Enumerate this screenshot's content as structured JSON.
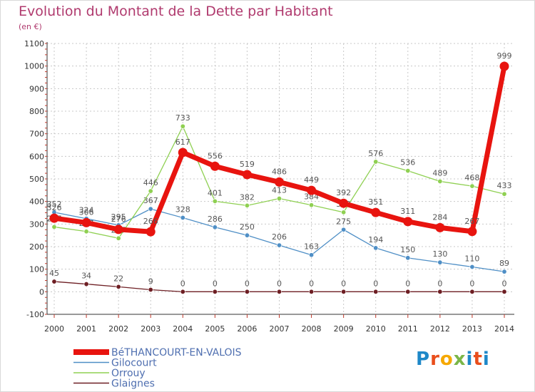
{
  "chart_data": {
    "type": "line",
    "title": "Evolution du Montant de la Dette par Habitant",
    "subtitle": "(en €)",
    "x": [
      "2000",
      "2001",
      "2002",
      "2003",
      "2004",
      "2005",
      "2006",
      "2007",
      "2008",
      "2009",
      "2010",
      "2011",
      "2012",
      "2013",
      "2014"
    ],
    "ylim": [
      -100,
      1100
    ],
    "yticks": [
      -100,
      0,
      100,
      200,
      300,
      400,
      500,
      600,
      700,
      800,
      900,
      1000,
      1100
    ],
    "grid": true,
    "legend_position": "bottom-left",
    "series": [
      {
        "name": "Gilocourt",
        "color": "#4f8fc6",
        "width": 1.3,
        "values": [
          352,
          324,
          295,
          367,
          328,
          286,
          250,
          206,
          163,
          275,
          194,
          150,
          130,
          110,
          89
        ]
      },
      {
        "name": "Orrouy",
        "color": "#8fd052",
        "width": 1.3,
        "values": [
          287,
          267,
          237,
          446,
          733,
          401,
          382,
          413,
          384,
          352,
          576,
          536,
          489,
          468,
          433
        ]
      },
      {
        "name": "Glaignes",
        "color": "#6e1f24",
        "width": 1.3,
        "values": [
          45,
          34,
          22,
          9,
          0,
          0,
          0,
          0,
          0,
          0,
          0,
          0,
          0,
          0,
          0
        ]
      },
      {
        "name": "BéTHANCOURT-EN-VALOIS",
        "color": "#e8140f",
        "width": 7,
        "values": [
          326,
          306,
          276,
          266,
          617,
          556,
          519,
          486,
          449,
          392,
          351,
          311,
          284,
          267,
          999
        ]
      }
    ],
    "legend": [
      {
        "name": "BéTHANCOURT-EN-VALOIS",
        "color": "#e8140f",
        "thick": true
      },
      {
        "name": "Gilocourt",
        "color": "#4f8fc6",
        "thick": false
      },
      {
        "name": "Orrouy",
        "color": "#8fd052",
        "thick": false
      },
      {
        "name": "Glaignes",
        "color": "#6e1f24",
        "thick": false
      }
    ]
  },
  "logo": {
    "letters": [
      "P",
      "r",
      "o",
      "x",
      "i",
      "t",
      "i"
    ]
  }
}
